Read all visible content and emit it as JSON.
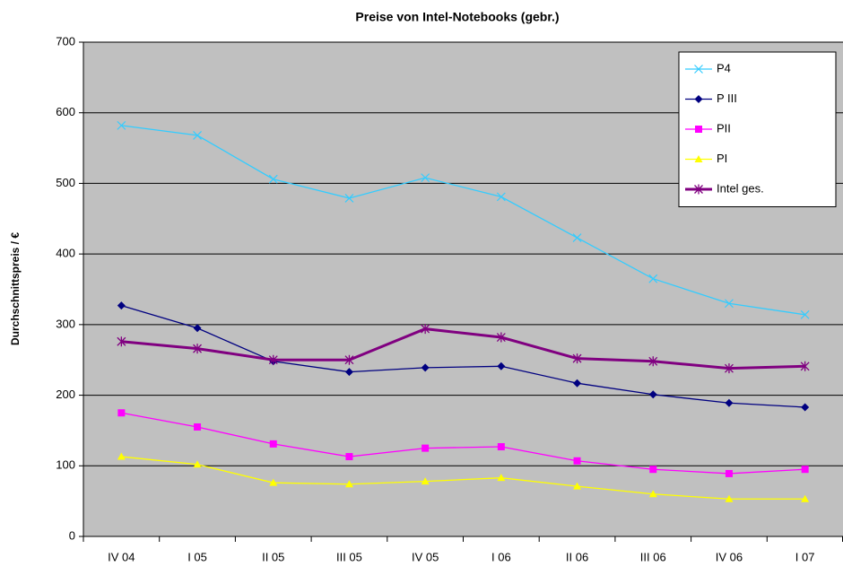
{
  "chart_data": {
    "type": "line",
    "title": "Preise von Intel-Notebooks (gebr.)",
    "y_label": "Durchschnittspreis / €",
    "categories": [
      "IV 04",
      "I 05",
      "II 05",
      "III 05",
      "IV 05",
      "I 06",
      "II 06",
      "III 06",
      "IV 06",
      "I 07"
    ],
    "series": [
      {
        "name": "P4",
        "color": "#33ccff",
        "marker": "x",
        "values": [
          582,
          568,
          506,
          479,
          508,
          481,
          423,
          365,
          330,
          314
        ]
      },
      {
        "name": "P III",
        "color": "#000080",
        "marker": "diamond",
        "values": [
          327,
          295,
          248,
          233,
          239,
          241,
          217,
          201,
          189,
          183
        ]
      },
      {
        "name": "PII",
        "color": "#ff00ff",
        "marker": "square",
        "values": [
          175,
          155,
          131,
          113,
          125,
          127,
          107,
          95,
          89,
          95
        ]
      },
      {
        "name": "PI",
        "color": "#ffff00",
        "marker": "triangle",
        "values": [
          113,
          102,
          76,
          74,
          78,
          83,
          71,
          60,
          53,
          53
        ]
      },
      {
        "name": "Intel ges.",
        "color": "#800080",
        "marker": "star",
        "values": [
          276,
          266,
          250,
          250,
          294,
          282,
          252,
          248,
          238,
          241
        ]
      }
    ],
    "ylim": [
      0,
      700
    ],
    "yticks": [
      0,
      100,
      200,
      300,
      400,
      500,
      600,
      700
    ],
    "grid": true,
    "legend": "top-right",
    "plot_background": "#c0c0c0"
  }
}
